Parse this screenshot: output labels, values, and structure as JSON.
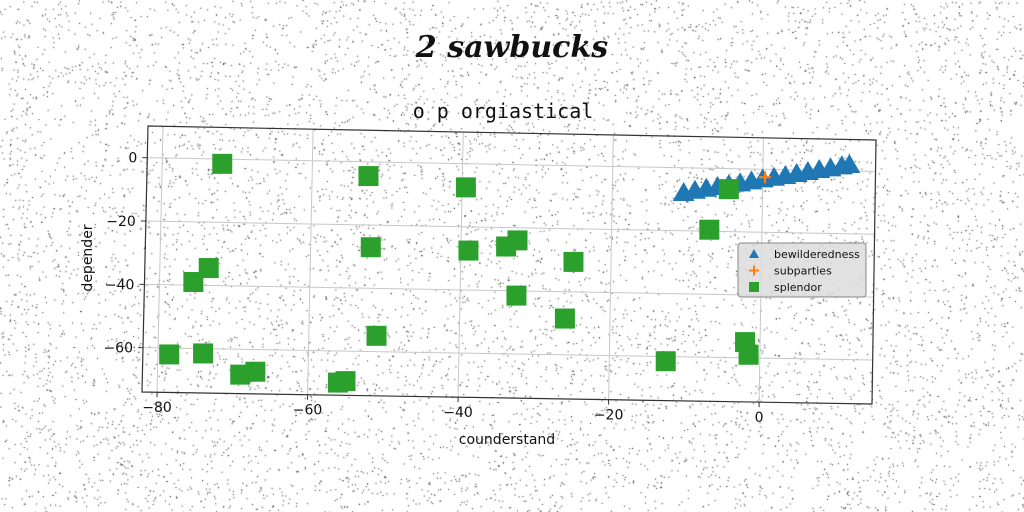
{
  "page": {
    "suptitle": "2 sawbucks"
  },
  "colors": {
    "background": "#ffffff",
    "axes_border": "#333333",
    "grid": "#c8c8c8",
    "bewilderedness": "#1f77b4",
    "subparties": "#ff7f0e",
    "splendor": "#2ca02c",
    "legend_bg": "#dcdcdc"
  },
  "chart_data": {
    "type": "scatter",
    "title": "o p orgiastical",
    "xlabel": "counderstand",
    "ylabel": "depender",
    "xlim": [
      -82,
      15
    ],
    "ylim": [
      -74,
      10
    ],
    "xticks": [
      -80,
      -60,
      -40,
      -20,
      0
    ],
    "yticks": [
      0,
      -20,
      -40,
      -60
    ],
    "xtick_labels": [
      "−80",
      "−60",
      "−40",
      "−20",
      "0"
    ],
    "ytick_labels": [
      "0",
      "−20",
      "−40",
      "−60"
    ],
    "grid": true,
    "legend_position": "center-right",
    "series": [
      {
        "name": "bewilderedness",
        "marker": "triangle",
        "color": "#1f77b4",
        "points": [
          {
            "x": -10.5,
            "y": -8.0
          },
          {
            "x": -9.0,
            "y": -7.2
          },
          {
            "x": -7.5,
            "y": -6.5
          },
          {
            "x": -6.0,
            "y": -5.9
          },
          {
            "x": -4.5,
            "y": -5.2
          },
          {
            "x": -3.0,
            "y": -4.6
          },
          {
            "x": -1.5,
            "y": -3.9
          },
          {
            "x": 0.0,
            "y": -3.2
          },
          {
            "x": 1.5,
            "y": -2.6
          },
          {
            "x": 3.0,
            "y": -2.0
          },
          {
            "x": 4.5,
            "y": -1.3
          },
          {
            "x": 6.0,
            "y": -0.6
          },
          {
            "x": 7.5,
            "y": 0.1
          },
          {
            "x": 9.0,
            "y": 0.7
          },
          {
            "x": 10.5,
            "y": 1.4
          },
          {
            "x": 11.5,
            "y": 1.9
          }
        ]
      },
      {
        "name": "subparties",
        "marker": "plus",
        "color": "#ff7f0e",
        "points": [
          {
            "x": 0.3,
            "y": -2.5
          }
        ]
      },
      {
        "name": "splendor",
        "marker": "square",
        "color": "#2ca02c",
        "points": [
          {
            "x": -72,
            "y": -1.5
          },
          {
            "x": -52.5,
            "y": -4.5
          },
          {
            "x": -39.5,
            "y": -7.5
          },
          {
            "x": -4.5,
            "y": -6.5
          },
          {
            "x": -7,
            "y": -19.5
          },
          {
            "x": -52,
            "y": -27
          },
          {
            "x": -39,
            "y": -27.5
          },
          {
            "x": -34,
            "y": -26
          },
          {
            "x": -32.5,
            "y": -24
          },
          {
            "x": -25,
            "y": -30.5
          },
          {
            "x": -73.5,
            "y": -34.5
          },
          {
            "x": -75.5,
            "y": -39
          },
          {
            "x": -32.5,
            "y": -41.5
          },
          {
            "x": -26,
            "y": -48.5
          },
          {
            "x": -51,
            "y": -55
          },
          {
            "x": -2,
            "y": -55
          },
          {
            "x": -1.5,
            "y": -59
          },
          {
            "x": -78.5,
            "y": -62
          },
          {
            "x": -74,
            "y": -61.5
          },
          {
            "x": -12.5,
            "y": -61.5
          },
          {
            "x": -69,
            "y": -68
          },
          {
            "x": -67,
            "y": -67
          },
          {
            "x": -56,
            "y": -70
          },
          {
            "x": -55,
            "y": -69.5
          }
        ]
      }
    ]
  }
}
